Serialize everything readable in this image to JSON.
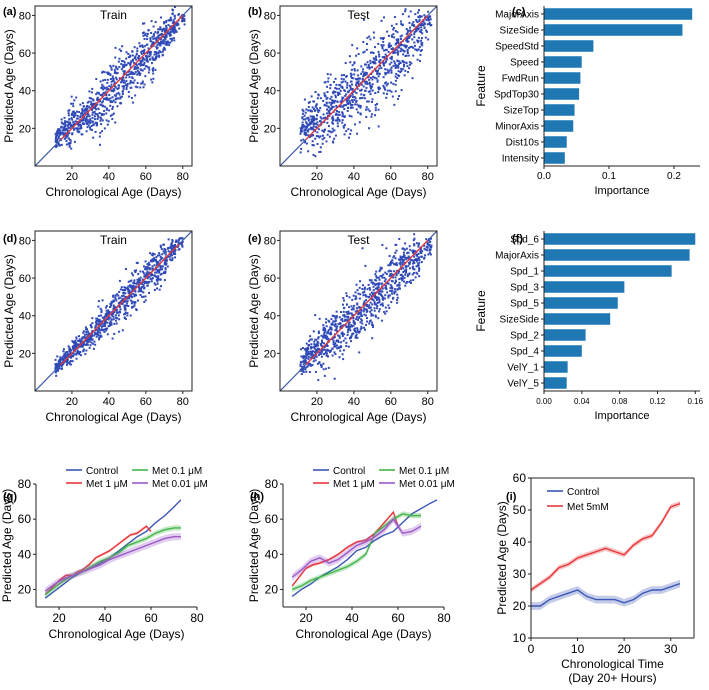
{
  "colors": {
    "scatter": "#2f49b8",
    "fit": "#e8373a",
    "identity": "#3b5aa8",
    "bar": "#1f77b4",
    "control": "#3b57b5",
    "met1": "#e8373a",
    "met01": "#43b54a",
    "met001": "#9b59c9"
  },
  "chart_data": [
    {
      "id": "a",
      "label": "(a)",
      "type": "scatter",
      "title": "Train",
      "xlabel": "Chronological Age (Days)",
      "ylabel": "Predicted Age (Days)",
      "xlim": [
        0,
        85
      ],
      "ylim": [
        0,
        85
      ],
      "xticks": [
        20,
        40,
        60,
        80
      ],
      "yticks": [
        20,
        40,
        60,
        80
      ],
      "seeds": [
        3,
        1.6
      ],
      "cloud": [
        [
          14,
          18,
          3,
          1.0
        ],
        [
          20,
          22,
          5,
          1.0
        ],
        [
          26,
          25,
          4,
          1.0
        ],
        [
          32,
          30,
          6,
          1.0
        ],
        [
          38,
          36,
          7,
          1.0
        ],
        [
          44,
          42,
          8,
          1.0
        ],
        [
          50,
          49,
          7,
          1.0
        ],
        [
          56,
          55,
          7,
          1.0
        ],
        [
          62,
          60,
          7,
          1.0
        ],
        [
          68,
          67,
          6,
          1.0
        ],
        [
          73,
          72,
          4,
          1.0
        ],
        [
          78,
          76,
          2,
          0.5
        ]
      ],
      "fit": [
        [
          14,
          14
        ],
        [
          80,
          80
        ]
      ]
    },
    {
      "id": "b",
      "label": "(b)",
      "type": "scatter",
      "title": "Test",
      "xlabel": "Chronological Age (Days)",
      "ylabel": "Predicted Age (Days)",
      "xlim": [
        0,
        85
      ],
      "ylim": [
        0,
        85
      ],
      "xticks": [
        20,
        40,
        60,
        80
      ],
      "yticks": [
        20,
        40,
        60,
        80
      ],
      "seeds": [
        7,
        6
      ],
      "cloud": [
        [
          14,
          21,
          6,
          1.0
        ],
        [
          20,
          25,
          8,
          1.0
        ],
        [
          26,
          29,
          9,
          1.0
        ],
        [
          32,
          33,
          9,
          1.0
        ],
        [
          38,
          38,
          10,
          1.0
        ],
        [
          44,
          43,
          11,
          1.0
        ],
        [
          50,
          47,
          11,
          1.0
        ],
        [
          56,
          53,
          11,
          1.0
        ],
        [
          62,
          58,
          10,
          1.0
        ],
        [
          68,
          64,
          9,
          1.0
        ],
        [
          74,
          70,
          7,
          0.8
        ],
        [
          79,
          76,
          4,
          0.5
        ]
      ],
      "fit": [
        [
          14,
          14
        ],
        [
          80,
          80
        ]
      ]
    },
    {
      "id": "c",
      "label": "(c)",
      "type": "bar",
      "xlabel": "Importance",
      "ylabel": "Feature",
      "xlim": [
        0,
        0.24
      ],
      "xticks": [
        0.0,
        0.1,
        0.2
      ],
      "xticklabels": [
        "0.0",
        "0.1",
        "0.2"
      ],
      "categories": [
        "MajorAxis",
        "SizeSide",
        "SpeedStd",
        "Speed",
        "FwdRun",
        "SpdTop30",
        "SizeTop",
        "MinorAxis",
        "Dist10s",
        "Intensity"
      ],
      "values": [
        0.228,
        0.213,
        0.076,
        0.058,
        0.056,
        0.054,
        0.047,
        0.045,
        0.035,
        0.032
      ]
    },
    {
      "id": "d",
      "label": "(d)",
      "type": "scatter",
      "title": "Train",
      "xlabel": "Chronological Age (Days)",
      "ylabel": "Predicted Age (Days)",
      "xlim": [
        0,
        85
      ],
      "ylim": [
        0,
        85
      ],
      "xticks": [
        20,
        40,
        60,
        80
      ],
      "yticks": [
        20,
        40,
        60,
        80
      ],
      "seeds": [
        2.5,
        1.3
      ],
      "cloud": [
        [
          14,
          15,
          2,
          1.0
        ],
        [
          20,
          21,
          3,
          1.0
        ],
        [
          26,
          26,
          3,
          1.0
        ],
        [
          32,
          32,
          4,
          1.0
        ],
        [
          38,
          38,
          4,
          1.0
        ],
        [
          44,
          44,
          5,
          1.0
        ],
        [
          50,
          50,
          5,
          1.0
        ],
        [
          56,
          56,
          5,
          1.0
        ],
        [
          62,
          62,
          5,
          1.0
        ],
        [
          68,
          67,
          5,
          1.0
        ],
        [
          73,
          73,
          3,
          0.8
        ],
        [
          77,
          77,
          2,
          0.4
        ]
      ],
      "fit": [
        [
          14,
          14
        ],
        [
          78,
          78
        ]
      ]
    },
    {
      "id": "e",
      "label": "(e)",
      "type": "scatter",
      "title": "Test",
      "xlabel": "Chronological Age (Days)",
      "ylabel": "Predicted Age (Days)",
      "xlim": [
        0,
        85
      ],
      "ylim": [
        0,
        85
      ],
      "xticks": [
        20,
        40,
        60,
        80
      ],
      "yticks": [
        20,
        40,
        60,
        80
      ],
      "seeds": [
        5,
        4
      ],
      "cloud": [
        [
          14,
          17,
          4,
          1.0
        ],
        [
          20,
          22,
          6,
          1.0
        ],
        [
          26,
          27,
          6,
          1.0
        ],
        [
          32,
          32,
          7,
          1.0
        ],
        [
          38,
          37,
          7,
          1.0
        ],
        [
          44,
          43,
          8,
          1.0
        ],
        [
          50,
          49,
          8,
          1.0
        ],
        [
          56,
          55,
          8,
          1.0
        ],
        [
          62,
          60,
          7,
          1.0
        ],
        [
          68,
          66,
          6,
          1.0
        ],
        [
          74,
          71,
          5,
          0.8
        ],
        [
          79,
          75,
          3,
          0.4
        ]
      ],
      "fit": [
        [
          14,
          14
        ],
        [
          80,
          80
        ]
      ]
    },
    {
      "id": "f",
      "label": "(f)",
      "type": "bar",
      "xlabel": "Importance",
      "ylabel": "Feature",
      "xlim": [
        0,
        0.165
      ],
      "xticks": [
        0.0,
        0.04,
        0.08,
        0.12,
        0.16
      ],
      "xticklabels": [
        "0.00",
        "0.04",
        "0.08",
        "0.12",
        "0.16"
      ],
      "categories": [
        "Spd_6",
        "MajorAxis",
        "Spd_1",
        "Spd_3",
        "Spd_5",
        "SizeSide",
        "Spd_2",
        "Spd_4",
        "VelY_1",
        "VelY_5"
      ],
      "values": [
        0.16,
        0.154,
        0.135,
        0.085,
        0.078,
        0.07,
        0.044,
        0.04,
        0.025,
        0.024
      ]
    },
    {
      "id": "g",
      "label": "(g)",
      "type": "line",
      "xlabel": "Chronological Age (Days)",
      "ylabel": "Predicted Age (Days)",
      "xlim": [
        10,
        80
      ],
      "ylim": [
        10,
        80
      ],
      "xticks": [
        20,
        40,
        60,
        80
      ],
      "yticks": [
        20,
        40,
        60,
        80
      ],
      "legend": [
        {
          "name": "Control",
          "color_key": "control"
        },
        {
          "name": "Met 0.1 μM",
          "color_key": "met01"
        },
        {
          "name": "Met 1 μM",
          "color_key": "met1"
        },
        {
          "name": "Met 0.01 μM",
          "color_key": "met001"
        }
      ],
      "series": [
        {
          "name": "Control",
          "color_key": "control",
          "band": 0,
          "x": [
            14,
            18,
            22,
            26,
            30,
            34,
            38,
            42,
            46,
            50,
            54,
            58,
            62,
            66,
            70,
            73
          ],
          "y": [
            15,
            19,
            23,
            27,
            30,
            32,
            35,
            38,
            42,
            46,
            50,
            53,
            58,
            62,
            67,
            71
          ]
        },
        {
          "name": "Met 1 μM",
          "color_key": "met1",
          "band": 0.8,
          "x": [
            14,
            17,
            20,
            23,
            26,
            28,
            30,
            33,
            36,
            39,
            42,
            45,
            48,
            51,
            54,
            56,
            58,
            60
          ],
          "y": [
            17,
            21,
            25,
            28,
            28,
            30,
            31,
            34,
            38,
            40,
            42,
            45,
            48,
            51,
            52,
            54,
            56,
            53
          ]
        },
        {
          "name": "Met 0.1 μM",
          "color_key": "met01",
          "band": 1.5,
          "x": [
            14,
            18,
            22,
            26,
            30,
            34,
            38,
            42,
            46,
            50,
            54,
            58,
            62,
            66,
            70,
            73
          ],
          "y": [
            17,
            21,
            25,
            28,
            30,
            33,
            36,
            38,
            41,
            45,
            47,
            49,
            52,
            54,
            55,
            55
          ]
        },
        {
          "name": "Met 0.01 μM",
          "color_key": "met001",
          "band": 2,
          "x": [
            14,
            18,
            22,
            26,
            30,
            34,
            38,
            42,
            46,
            50,
            54,
            58,
            62,
            66,
            70,
            73
          ],
          "y": [
            19,
            23,
            26,
            28,
            30,
            32,
            34,
            37,
            39,
            41,
            43,
            45,
            47,
            49,
            50,
            50
          ]
        }
      ]
    },
    {
      "id": "h",
      "label": "(h)",
      "type": "line",
      "xlabel": "Chronological Age (Days)",
      "ylabel": "Predicted Age (Days)",
      "xlim": [
        10,
        80
      ],
      "ylim": [
        10,
        80
      ],
      "xticks": [
        20,
        40,
        60,
        80
      ],
      "yticks": [
        20,
        40,
        60,
        80
      ],
      "legend": [
        {
          "name": "Control",
          "color_key": "control"
        },
        {
          "name": "Met 0.1 μM",
          "color_key": "met01"
        },
        {
          "name": "Met 1 μM",
          "color_key": "met1"
        },
        {
          "name": "Met 0.01 μM",
          "color_key": "met001"
        }
      ],
      "series": [
        {
          "name": "Control",
          "color_key": "control",
          "band": 0,
          "x": [
            14,
            18,
            22,
            26,
            30,
            34,
            38,
            42,
            46,
            50,
            54,
            58,
            62,
            66,
            70,
            74,
            77
          ],
          "y": [
            16,
            20,
            23,
            27,
            30,
            33,
            37,
            42,
            44,
            48,
            51,
            53,
            58,
            63,
            66,
            69,
            71
          ]
        },
        {
          "name": "Met 1 μM",
          "color_key": "met1",
          "band": 0.8,
          "x": [
            14,
            17,
            20,
            23,
            26,
            30,
            34,
            38,
            42,
            46,
            50,
            54,
            58,
            60
          ],
          "y": [
            22,
            27,
            32,
            34,
            35,
            37,
            40,
            44,
            47,
            48,
            52,
            58,
            64,
            56
          ]
        },
        {
          "name": "Met 0.1 μM",
          "color_key": "met01",
          "band": 1.5,
          "x": [
            14,
            18,
            22,
            26,
            30,
            34,
            38,
            42,
            46,
            50,
            54,
            58,
            62,
            66,
            70
          ],
          "y": [
            20,
            22,
            25,
            27,
            29,
            31,
            33,
            36,
            40,
            52,
            56,
            60,
            63,
            62,
            62
          ]
        },
        {
          "name": "Met 0.01 μM",
          "color_key": "met001",
          "band": 2,
          "x": [
            14,
            18,
            22,
            26,
            30,
            34,
            38,
            42,
            46,
            50,
            54,
            58,
            62,
            66,
            70
          ],
          "y": [
            27,
            31,
            36,
            38,
            35,
            37,
            41,
            45,
            47,
            50,
            54,
            60,
            52,
            53,
            56
          ]
        }
      ]
    },
    {
      "id": "i",
      "label": "(i)",
      "type": "line",
      "xlabel": "Chronological Time",
      "xlabel2": "(Day 20+ Hours)",
      "ylabel": "Predicted Age (Days)",
      "xlim": [
        0,
        35
      ],
      "ylim": [
        10,
        60
      ],
      "xticks": [
        0,
        10,
        20,
        30
      ],
      "yticks": [
        10,
        20,
        30,
        40,
        50,
        60
      ],
      "legend": [
        {
          "name": "Control",
          "color_key": "control"
        },
        {
          "name": "Met 5mM",
          "color_key": "met1"
        }
      ],
      "series": [
        {
          "name": "Control",
          "color_key": "control",
          "band": 1.2,
          "x": [
            0,
            2,
            4,
            6,
            8,
            10,
            12,
            14,
            16,
            18,
            20,
            22,
            24,
            26,
            28,
            30,
            32
          ],
          "y": [
            20,
            20,
            22,
            23,
            24,
            25,
            23,
            22,
            22,
            22,
            21,
            22,
            24,
            25,
            25,
            26,
            27
          ]
        },
        {
          "name": "Met 5mM",
          "color_key": "met1",
          "band": 0.8,
          "x": [
            0,
            2,
            4,
            6,
            8,
            10,
            12,
            14,
            16,
            18,
            20,
            22,
            24,
            26,
            28,
            30,
            32
          ],
          "y": [
            25,
            27,
            29,
            32,
            33,
            35,
            36,
            37,
            38,
            37,
            36,
            39,
            41,
            42,
            46,
            51,
            52
          ]
        }
      ]
    }
  ]
}
